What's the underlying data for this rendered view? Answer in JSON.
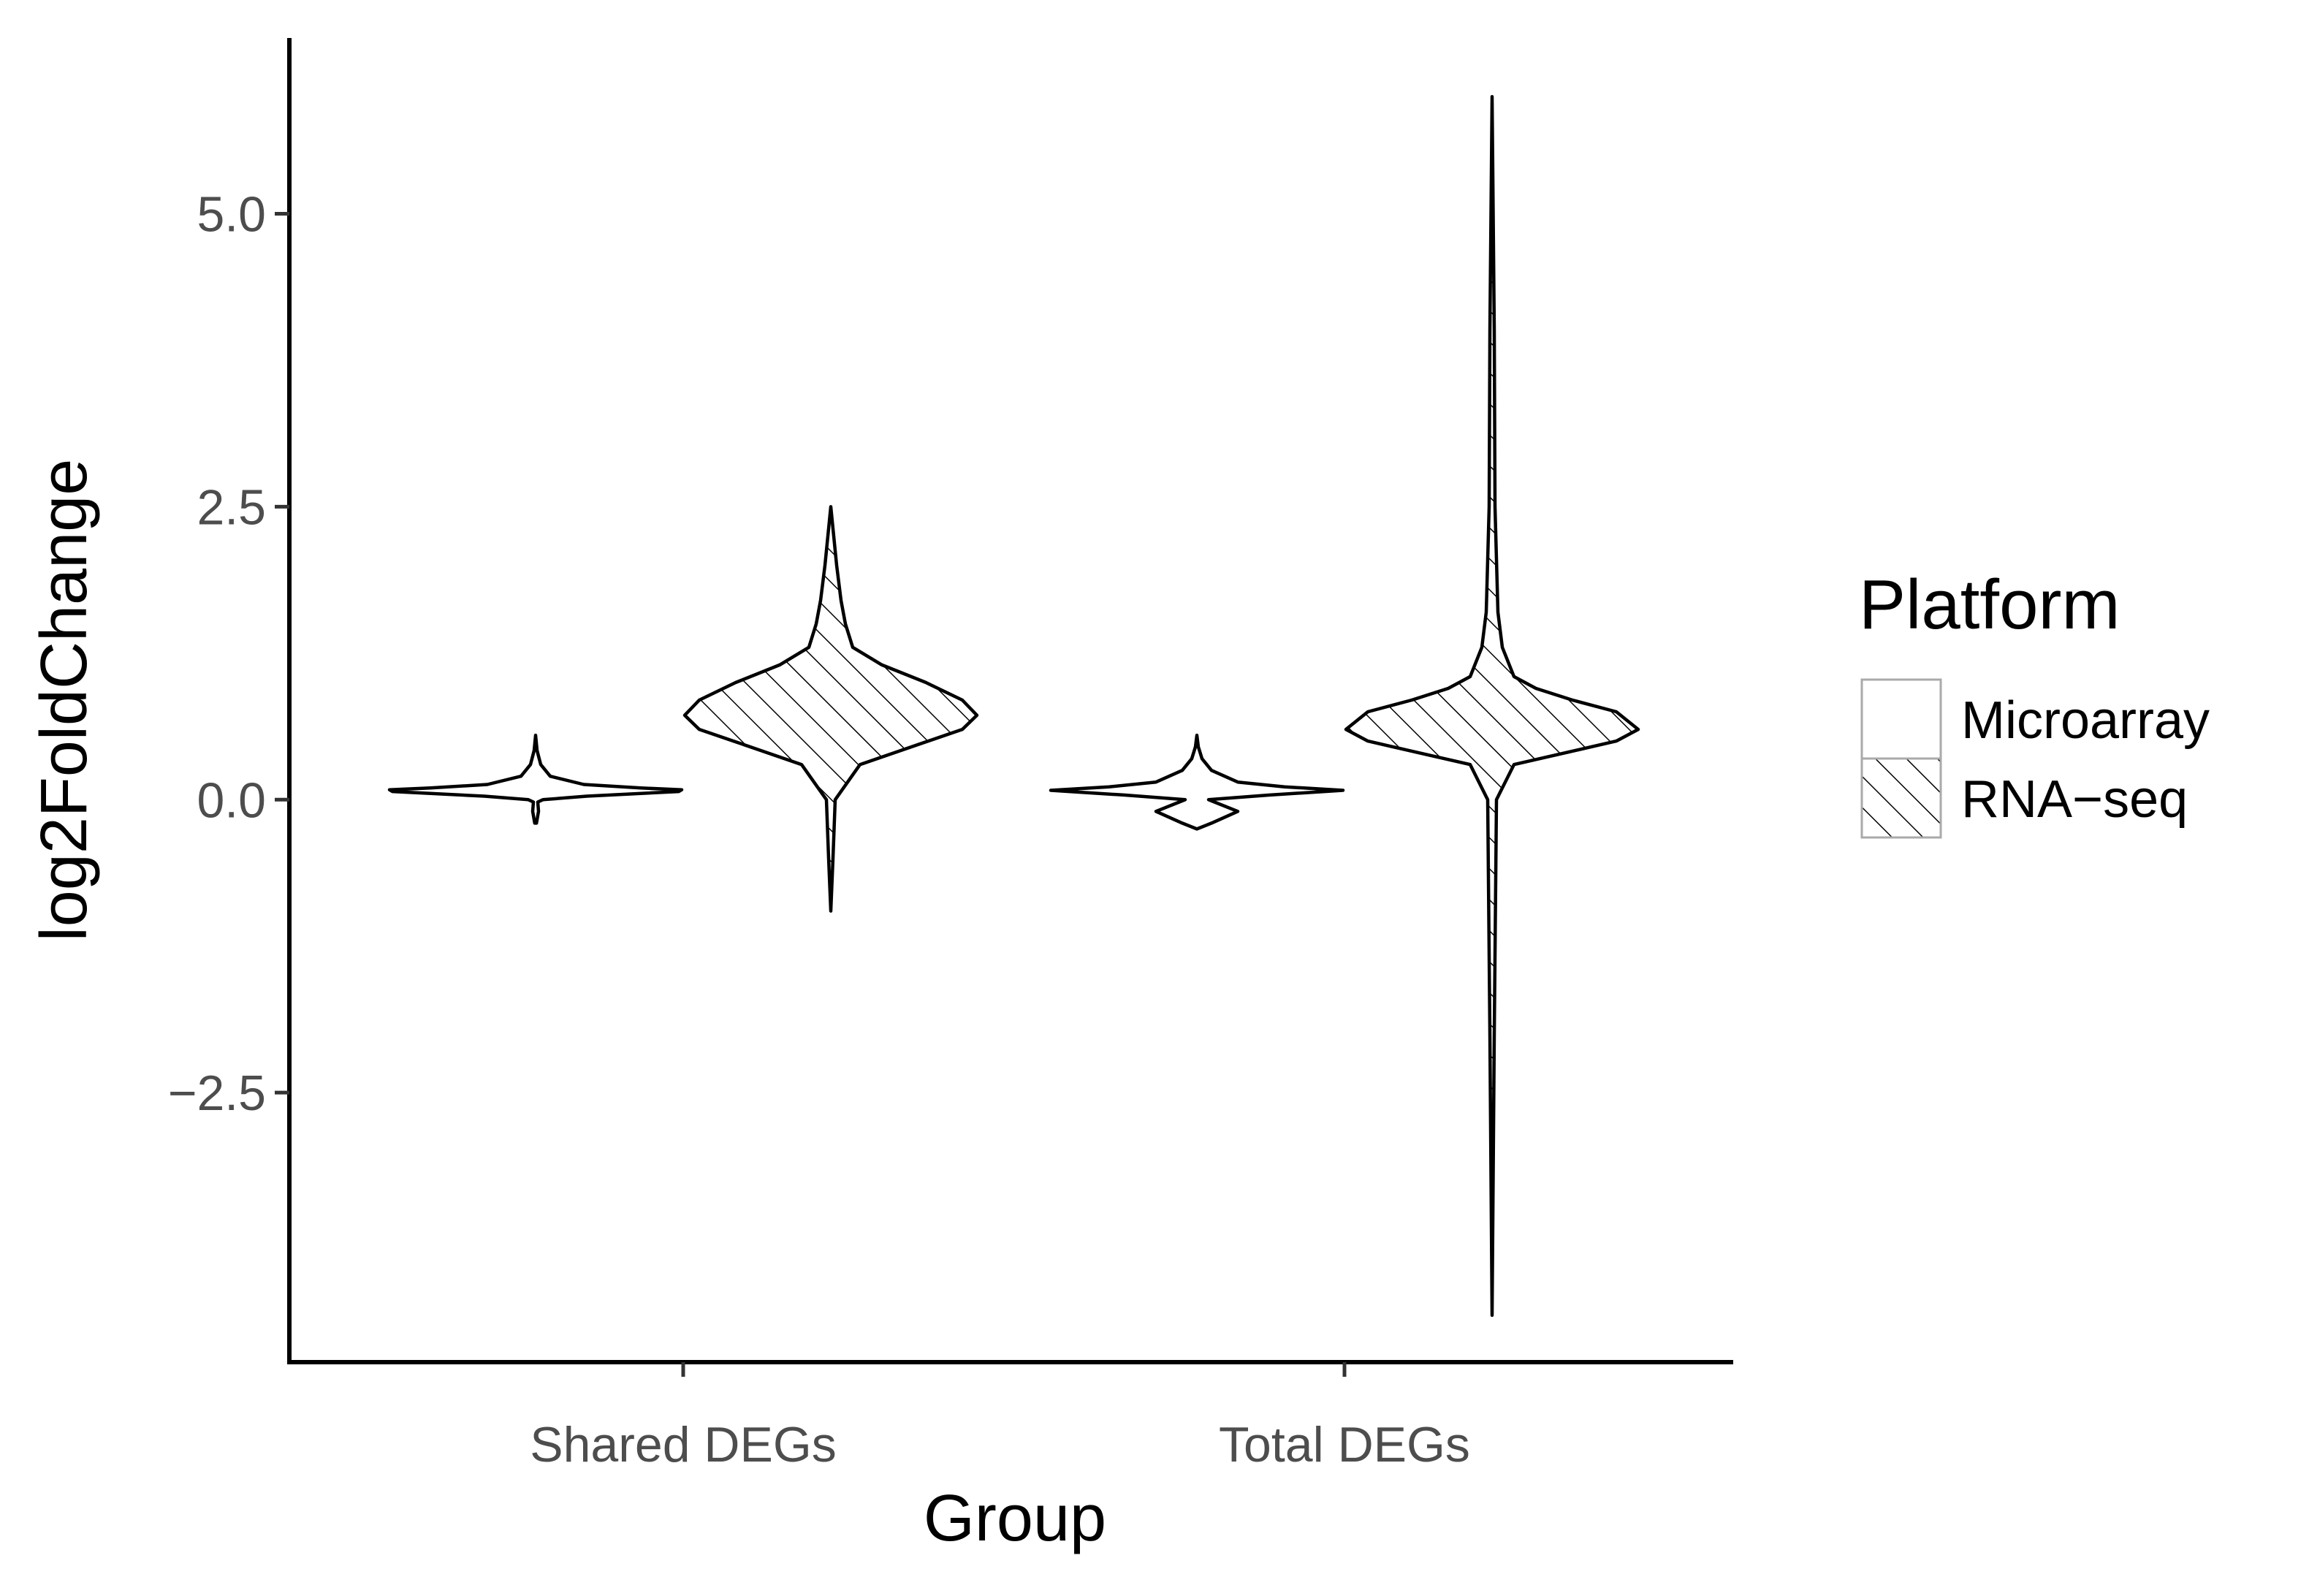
{
  "chart_data": {
    "type": "violin",
    "xlabel": "Group",
    "ylabel": "log2FoldChange",
    "categories": [
      "Shared DEGs",
      "Total DEGs"
    ],
    "ylim": [
      -4.8,
      6.5
    ],
    "yticks": [
      -2.5,
      0.0,
      2.5,
      5.0
    ],
    "ytick_labels": [
      "−2.5",
      "0.0",
      "2.5",
      "5.0"
    ],
    "grid": false,
    "legend": {
      "title": "Platform",
      "position": "right",
      "entries": [
        {
          "label": "Microarray",
          "fill": "plain"
        },
        {
          "label": "RNA−seq",
          "fill": "hatched"
        }
      ]
    },
    "series": [
      {
        "name": "Microarray",
        "fill": "plain",
        "violins": [
          {
            "category": "Shared DEGs",
            "min": -0.2,
            "max": 0.55,
            "profile": [
              [
                -0.2,
                0.006
              ],
              [
                -0.1,
                0.02
              ],
              [
                -0.02,
                0.015
              ],
              [
                0.0,
                0.05
              ],
              [
                0.03,
                0.35
              ],
              [
                0.07,
                0.98
              ],
              [
                0.085,
                1.0
              ],
              [
                0.1,
                0.72
              ],
              [
                0.13,
                0.33
              ],
              [
                0.2,
                0.1
              ],
              [
                0.3,
                0.035
              ],
              [
                0.42,
                0.01
              ],
              [
                0.55,
                0.0
              ]
            ]
          },
          {
            "category": "Total DEGs",
            "min": -0.25,
            "max": 0.55,
            "profile": [
              [
                -0.25,
                0.0
              ],
              [
                -0.2,
                0.1
              ],
              [
                -0.1,
                0.28
              ],
              [
                -0.02,
                0.12
              ],
              [
                0.0,
                0.08
              ],
              [
                0.04,
                0.5
              ],
              [
                0.08,
                1.0
              ],
              [
                0.11,
                0.6
              ],
              [
                0.15,
                0.28
              ],
              [
                0.25,
                0.1
              ],
              [
                0.35,
                0.035
              ],
              [
                0.45,
                0.01
              ],
              [
                0.55,
                0.0
              ]
            ]
          }
        ]
      },
      {
        "name": "RNA−seq",
        "fill": "hatched",
        "violins": [
          {
            "category": "Shared DEGs",
            "min": -0.95,
            "max": 2.5,
            "profile": [
              [
                -0.95,
                0.0
              ],
              [
                -0.5,
                0.015
              ],
              [
                0.0,
                0.03
              ],
              [
                0.3,
                0.2
              ],
              [
                0.45,
                0.55
              ],
              [
                0.6,
                0.9
              ],
              [
                0.72,
                1.0
              ],
              [
                0.85,
                0.9
              ],
              [
                1.0,
                0.65
              ],
              [
                1.15,
                0.35
              ],
              [
                1.3,
                0.15
              ],
              [
                1.5,
                0.1
              ],
              [
                1.7,
                0.07
              ],
              [
                2.0,
                0.04
              ],
              [
                2.5,
                0.0
              ]
            ]
          },
          {
            "category": "Total DEGs",
            "min": -4.4,
            "max": 6.0,
            "profile": [
              [
                -4.4,
                0.0
              ],
              [
                -2.0,
                0.015
              ],
              [
                0.0,
                0.03
              ],
              [
                0.3,
                0.15
              ],
              [
                0.4,
                0.5
              ],
              [
                0.5,
                0.85
              ],
              [
                0.6,
                1.0
              ],
              [
                0.75,
                0.85
              ],
              [
                0.85,
                0.55
              ],
              [
                0.95,
                0.3
              ],
              [
                1.05,
                0.15
              ],
              [
                1.3,
                0.07
              ],
              [
                1.6,
                0.04
              ],
              [
                2.5,
                0.02
              ],
              [
                4.0,
                0.015
              ],
              [
                6.0,
                0.0
              ]
            ]
          }
        ]
      }
    ]
  }
}
